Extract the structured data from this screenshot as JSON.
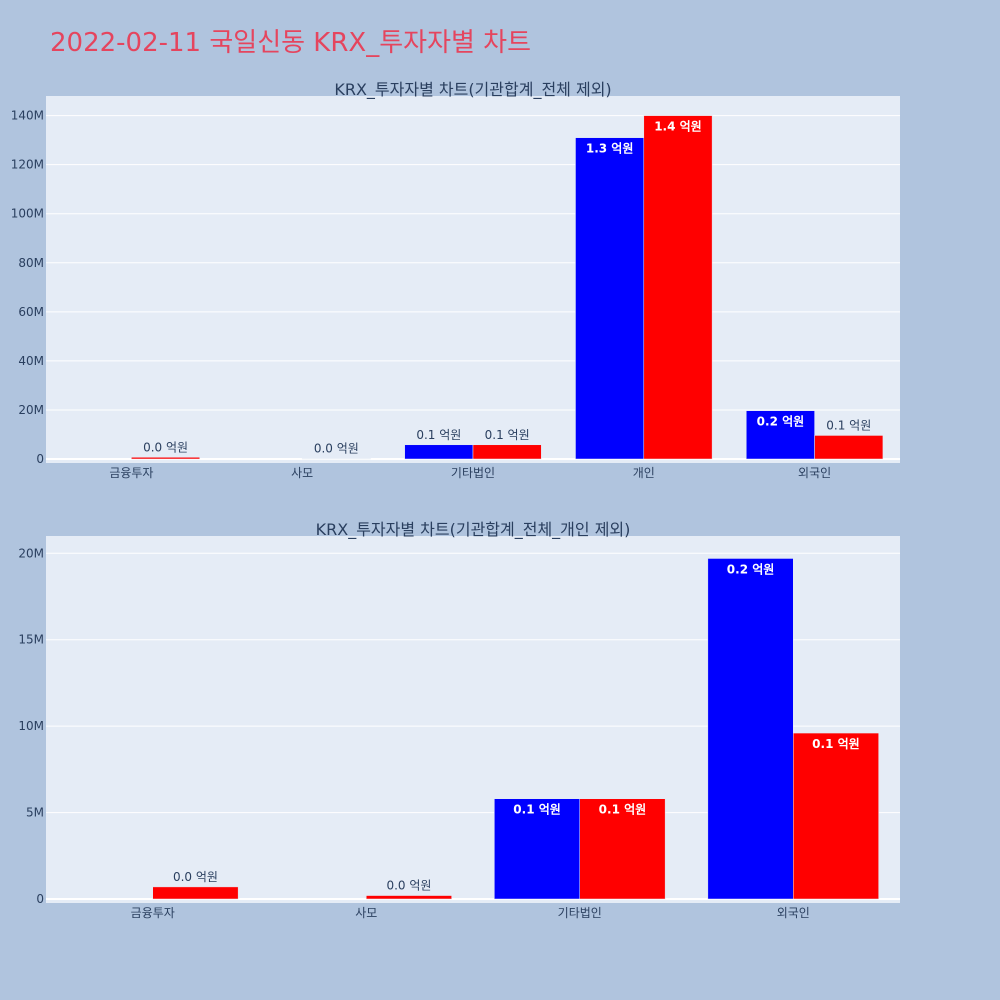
{
  "page_title": "2022-02-11 국일신동 KRX_투자자별 차트",
  "colors": {
    "background": "#b0c4de",
    "plot_bg": "#e5ecf6",
    "title": "#e5455e",
    "series_a": "#0000ff",
    "series_b": "#ff0000"
  },
  "chart_data": [
    {
      "type": "bar",
      "title": "KRX_투자자별 차트(기관합계_전체 제외)",
      "categories": [
        "금융투자",
        "사모",
        "기타법인",
        "개인",
        "외국인"
      ],
      "y_ticks": [
        "0",
        "20M",
        "40M",
        "60M",
        "80M",
        "100M",
        "120M",
        "140M"
      ],
      "ylim": [
        0,
        148000000
      ],
      "grid": true,
      "series": [
        {
          "color": "#0000ff",
          "values": [
            0,
            0,
            5800000,
            131000000,
            19700000
          ],
          "labels": [
            "",
            "",
            "0.1 억원",
            "1.3 억원",
            "0.2 억원"
          ]
        },
        {
          "color": "#ff0000",
          "values": [
            700000,
            200000,
            5800000,
            140000000,
            9600000
          ],
          "labels": [
            "0.0 억원",
            "0.0 억원",
            "0.1 억원",
            "1.4 억원",
            "0.1 억원"
          ]
        }
      ]
    },
    {
      "type": "bar",
      "title": "KRX_투자자별 차트(기관합계_전체_개인 제외)",
      "categories": [
        "금융투자",
        "사모",
        "기타법인",
        "외국인"
      ],
      "y_ticks": [
        "0",
        "5M",
        "10M",
        "15M",
        "20M"
      ],
      "ylim": [
        0,
        21000000
      ],
      "grid": true,
      "series": [
        {
          "color": "#0000ff",
          "values": [
            0,
            0,
            5800000,
            19700000
          ],
          "labels": [
            "",
            "",
            "0.1 억원",
            "0.2 억원"
          ]
        },
        {
          "color": "#ff0000",
          "values": [
            700000,
            200000,
            5800000,
            9600000
          ],
          "labels": [
            "0.0 억원",
            "0.0 억원",
            "0.1 억원",
            "0.1 억원"
          ]
        }
      ]
    }
  ]
}
